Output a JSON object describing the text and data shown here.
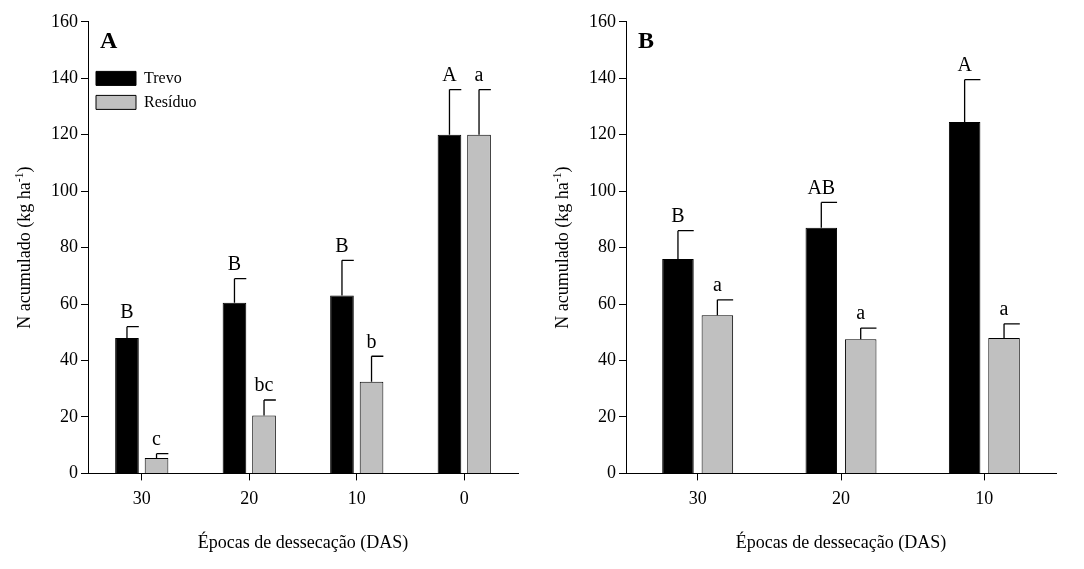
{
  "chart_data": [
    {
      "type": "bar",
      "title": "A",
      "xlabel": "Épocas de dessecação (DAS)",
      "ylabel": "N acumulado (kg ha$^{-1}$)",
      "categories": [
        "30",
        "20",
        "10",
        "0"
      ],
      "ylim": [
        0,
        160
      ],
      "yticks": [
        0,
        20,
        40,
        60,
        80,
        100,
        120,
        140,
        160
      ],
      "grid": false,
      "legend": "top left",
      "series": [
        {
          "name": "Trevo",
          "color": "#000000",
          "values": [
            48,
            60.5,
            63,
            120
          ],
          "errors": [
            [
              48,
              52
            ],
            [
              60.5,
              69
            ],
            [
              63,
              75.5
            ],
            [
              120,
              136
            ]
          ],
          "value_labels": [
            "B",
            "B",
            "B",
            "A"
          ]
        },
        {
          "name": "Resíduo",
          "color": "#c0c0c0",
          "values": [
            5.5,
            20.5,
            32.5,
            120
          ],
          "errors": [
            [
              5.5,
              7
            ],
            [
              20.5,
              26
            ],
            [
              32.5,
              41.5
            ],
            [
              120,
              136
            ]
          ],
          "value_labels": [
            "c",
            "bc",
            "b",
            "a"
          ]
        }
      ]
    },
    {
      "type": "bar",
      "title": "B",
      "xlabel": "Épocas de dessecação (DAS)",
      "ylabel": "N acumulado (kg ha$^{-1}$)",
      "categories": [
        "30",
        "20",
        "10"
      ],
      "ylim": [
        0,
        160
      ],
      "yticks": [
        0,
        20,
        40,
        60,
        80,
        100,
        120,
        140,
        160
      ],
      "grid": false,
      "legend": false,
      "series": [
        {
          "color": "#000000",
          "values": [
            76,
            87,
            124.5
          ],
          "errors": [
            [
              76,
              86
            ],
            [
              87,
              96
            ],
            [
              124.5,
              139.5
            ]
          ],
          "value_labels": [
            "B",
            "AB",
            "A"
          ]
        },
        {
          "color": "#c0c0c0",
          "values": [
            56,
            47.5,
            48
          ],
          "errors": [
            [
              56,
              61.5
            ],
            [
              47.5,
              51.5
            ],
            [
              48,
              53
            ]
          ],
          "value_labels": [
            "a",
            "a",
            "a"
          ]
        }
      ]
    }
  ]
}
